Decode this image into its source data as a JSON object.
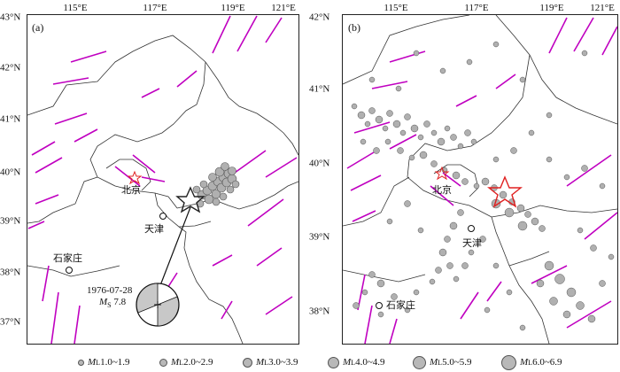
{
  "panel_a": {
    "label": "(a)",
    "lon_ticks": [
      "115°E",
      "117°E",
      "119°E",
      "121°E"
    ],
    "lat_ticks": [
      "43°N",
      "42°N",
      "41°N",
      "40°N",
      "39°N",
      "38°N",
      "37°N"
    ],
    "cities": {
      "beijing": "北京",
      "tianjin": "天津",
      "shijiazhuang": "石家庄"
    },
    "mainshock": {
      "date": "1976-07-28",
      "mag_label": "M",
      "mag_sub": "S",
      "mag_value": "7.8"
    }
  },
  "panel_b": {
    "label": "(b)",
    "lon_ticks": [
      "115°E",
      "117°E",
      "119°E",
      "121°E"
    ],
    "lat_ticks": [
      "42°N",
      "41°N",
      "40°N",
      "39°N",
      "38°N"
    ],
    "cities": {
      "beijing": "北京",
      "tianjin": "天津",
      "shijiazhuang": "石家庄"
    }
  },
  "legend": [
    {
      "m": "M",
      "sub": "L",
      "range": "1.0~1.9"
    },
    {
      "m": "M",
      "sub": "L",
      "range": "2.0~2.9"
    },
    {
      "m": "M",
      "sub": "L",
      "range": "3.0~3.9"
    },
    {
      "m": "M",
      "sub": "L",
      "range": "4.0~4.9"
    },
    {
      "m": "M",
      "sub": "L",
      "range": "5.0~5.9"
    },
    {
      "m": "M",
      "sub": "L",
      "range": "6.0~6.9"
    }
  ],
  "colors": {
    "fault": "#c000c0",
    "star_b": "#e02020",
    "star_a": "#222222",
    "event_fill": "#b0b0b0",
    "event_edge": "#555555",
    "border": "#333333"
  }
}
